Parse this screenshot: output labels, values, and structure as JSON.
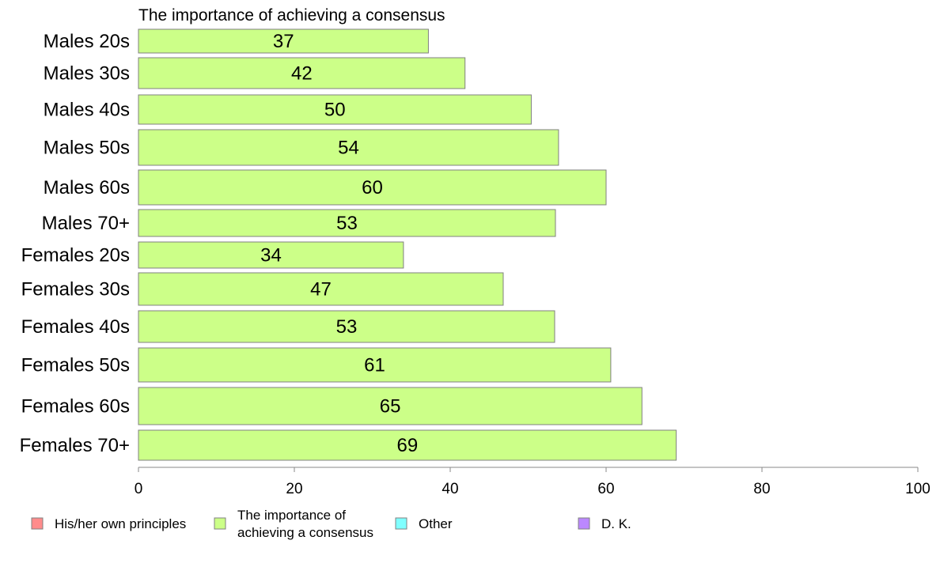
{
  "chart_data": {
    "type": "bar",
    "orientation": "horizontal",
    "title": "The importance of achieving a consensus",
    "xlabel": "",
    "ylabel": "",
    "xlim": [
      0,
      100
    ],
    "x_ticks": [
      0,
      20,
      40,
      60,
      80,
      100
    ],
    "grid": false,
    "legend_position": "bottom",
    "categories": [
      "Males 20s",
      "Males 30s",
      "Males 40s",
      "Males 50s",
      "Males 60s",
      "Males 70+",
      "Females 20s",
      "Females 30s",
      "Females 40s",
      "Females 50s",
      "Females 60s",
      "Females 70+"
    ],
    "series": [
      {
        "name": "The importance of achieving a consensus",
        "color": "#ccff88",
        "values": [
          37.2,
          41.9,
          50.4,
          53.9,
          60.0,
          53.5,
          34.0,
          46.8,
          53.4,
          60.6,
          64.6,
          69.0
        ],
        "labels": [
          "37",
          "42",
          "50",
          "54",
          "60",
          "53",
          "34",
          "47",
          "53",
          "61",
          "65",
          "69"
        ]
      }
    ],
    "legend": [
      {
        "lines": [
          "His/her own principles"
        ],
        "color": "#ff8c8c"
      },
      {
        "lines": [
          "The importance of",
          "achieving a consensus"
        ],
        "color": "#ccff88"
      },
      {
        "lines": [
          "Other"
        ],
        "color": "#80ffff"
      },
      {
        "lines": [
          "D. K."
        ],
        "color": "#bb88ff"
      }
    ]
  }
}
